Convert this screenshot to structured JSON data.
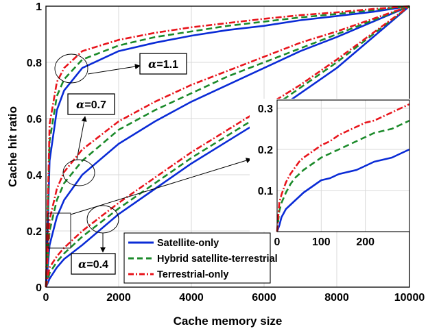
{
  "chart_data": {
    "type": "line",
    "xlabel": "Cache memory size",
    "ylabel": "Cache hit ratio",
    "xlim": [
      0,
      10000
    ],
    "ylim": [
      0,
      1
    ],
    "xticks": [
      "0",
      "2000",
      "4000",
      "6000",
      "8000",
      "10000"
    ],
    "yticks": [
      "0",
      "0.2",
      "0.4",
      "0.6",
      "0.8",
      "1"
    ],
    "grid": true,
    "legend_position": "bottom-right",
    "colors": {
      "satellite": "#0a2bd6",
      "hybrid": "#1b8a2a",
      "terrestrial": "#e8141b"
    },
    "x": [
      0,
      100,
      300,
      500,
      1000,
      2000,
      3000,
      4000,
      5000,
      6000,
      7000,
      8000,
      9000,
      10000
    ],
    "series": [
      {
        "name": "Satellite-only",
        "key": "satellite",
        "alpha": "1.1",
        "values": [
          0,
          0.45,
          0.63,
          0.7,
          0.78,
          0.84,
          0.87,
          0.895,
          0.915,
          0.93,
          0.95,
          0.965,
          0.98,
          1
        ]
      },
      {
        "name": "Hybrid satellite-terrestrial",
        "key": "hybrid",
        "alpha": "1.1",
        "values": [
          0,
          0.52,
          0.68,
          0.74,
          0.81,
          0.86,
          0.89,
          0.91,
          0.93,
          0.945,
          0.96,
          0.972,
          0.986,
          1
        ]
      },
      {
        "name": "Terrestrial-only",
        "key": "terrestrial",
        "alpha": "1.1",
        "values": [
          0,
          0.58,
          0.73,
          0.78,
          0.84,
          0.88,
          0.905,
          0.925,
          0.94,
          0.955,
          0.968,
          0.978,
          0.99,
          1
        ]
      },
      {
        "name": "Satellite-only",
        "key": "satellite",
        "alpha": "0.7",
        "values": [
          0,
          0.15,
          0.25,
          0.31,
          0.4,
          0.51,
          0.59,
          0.66,
          0.72,
          0.78,
          0.84,
          0.89,
          0.945,
          1
        ]
      },
      {
        "name": "Hybrid satellite-terrestrial",
        "key": "hybrid",
        "alpha": "0.7",
        "values": [
          0,
          0.2,
          0.31,
          0.37,
          0.45,
          0.56,
          0.63,
          0.69,
          0.75,
          0.8,
          0.85,
          0.9,
          0.95,
          1
        ]
      },
      {
        "name": "Terrestrial-only",
        "key": "terrestrial",
        "alpha": "0.7",
        "values": [
          0,
          0.24,
          0.35,
          0.41,
          0.49,
          0.59,
          0.66,
          0.72,
          0.77,
          0.82,
          0.87,
          0.91,
          0.955,
          1
        ]
      },
      {
        "name": "Satellite-only",
        "key": "satellite",
        "alpha": "0.4",
        "values": [
          0,
          0.03,
          0.07,
          0.1,
          0.15,
          0.26,
          0.35,
          0.44,
          0.52,
          0.6,
          0.69,
          0.78,
          0.89,
          1
        ]
      },
      {
        "name": "Hybrid satellite-terrestrial",
        "key": "hybrid",
        "alpha": "0.4",
        "values": [
          0,
          0.05,
          0.09,
          0.12,
          0.18,
          0.28,
          0.37,
          0.46,
          0.54,
          0.62,
          0.71,
          0.8,
          0.9,
          1
        ]
      },
      {
        "name": "Terrestrial-only",
        "key": "terrestrial",
        "alpha": "0.4",
        "values": [
          0,
          0.07,
          0.11,
          0.14,
          0.2,
          0.3,
          0.39,
          0.48,
          0.56,
          0.64,
          0.72,
          0.81,
          0.905,
          1
        ]
      }
    ],
    "legend": [
      "Satellite-only",
      "Hybrid satellite-terrestrial",
      "Terrestrial-only"
    ],
    "annotations": [
      {
        "greek": "α",
        "text": "=1.1"
      },
      {
        "greek": "α",
        "text": "=0.7"
      },
      {
        "greek": "α",
        "text": "=0.4"
      }
    ],
    "inset": {
      "xlim": [
        0,
        300
      ],
      "ylim": [
        0,
        0.32
      ],
      "xticks": [
        "0",
        "100",
        "200"
      ],
      "yticks": [
        "0.1",
        "0.2",
        "0.3"
      ],
      "x": [
        0,
        5,
        10,
        20,
        30,
        40,
        50,
        60,
        80,
        100,
        120,
        140,
        160,
        180,
        200,
        220,
        240,
        260,
        280,
        300
      ],
      "series": [
        {
          "key": "satellite",
          "values": [
            0,
            0.015,
            0.035,
            0.055,
            0.065,
            0.075,
            0.085,
            0.095,
            0.11,
            0.125,
            0.13,
            0.14,
            0.145,
            0.15,
            0.16,
            0.17,
            0.175,
            0.18,
            0.19,
            0.2
          ]
        },
        {
          "key": "hybrid",
          "values": [
            0,
            0.05,
            0.07,
            0.095,
            0.115,
            0.13,
            0.14,
            0.15,
            0.165,
            0.18,
            0.19,
            0.2,
            0.21,
            0.22,
            0.23,
            0.24,
            0.245,
            0.25,
            0.26,
            0.27
          ]
        },
        {
          "key": "terrestrial",
          "values": [
            0,
            0.07,
            0.09,
            0.12,
            0.14,
            0.155,
            0.17,
            0.18,
            0.195,
            0.21,
            0.22,
            0.235,
            0.245,
            0.255,
            0.265,
            0.27,
            0.28,
            0.29,
            0.3,
            0.31
          ]
        }
      ]
    }
  }
}
